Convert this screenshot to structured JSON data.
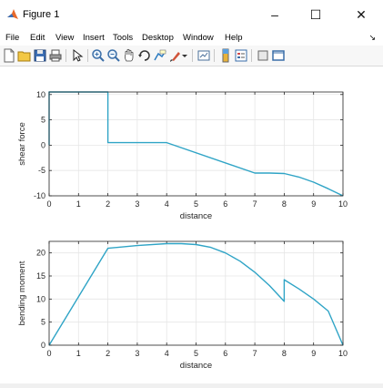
{
  "window": {
    "title": "Figure 1",
    "minimize_glyph": "–",
    "maximize_glyph": "☐",
    "close_glyph": "✕"
  },
  "menu": {
    "items": [
      "File",
      "Edit",
      "View",
      "Insert",
      "Tools",
      "Desktop",
      "Window",
      "Help"
    ],
    "overflow_glyph": "↘"
  },
  "toolbar": {
    "icons": [
      "new-figure-icon",
      "open-file-icon",
      "save-icon",
      "print-icon",
      "select-arrow-icon",
      "zoom-in-icon",
      "zoom-out-icon",
      "pan-icon",
      "rotate-3d-icon",
      "data-cursor-icon",
      "brush-icon",
      "brush-dropdown-icon",
      "link-plot-icon",
      "colorbar-icon",
      "legend-icon",
      "hide-plot-tools-icon",
      "show-plot-tools-icon"
    ]
  },
  "colors": {
    "line": "#2fa4c6",
    "grid": "#e6e6e6",
    "axis": "#262626"
  },
  "chart_data": [
    {
      "type": "line",
      "title": "",
      "xlabel": "distance",
      "ylabel": "shear force",
      "xlim": [
        0,
        10
      ],
      "ylim": [
        -10,
        10.5
      ],
      "xticks": [
        0,
        1,
        2,
        3,
        4,
        5,
        6,
        7,
        8,
        9,
        10
      ],
      "yticks": [
        -10,
        -5,
        0,
        5,
        10
      ],
      "grid": true,
      "x": [
        0,
        0,
        2,
        2,
        4,
        7,
        7.5,
        8,
        8.5,
        9,
        9.5,
        10
      ],
      "y": [
        0,
        10.5,
        10.5,
        0.5,
        0.5,
        -5.5,
        -5.5,
        -5.6,
        -6.3,
        -7.3,
        -8.6,
        -10
      ]
    },
    {
      "type": "line",
      "title": "",
      "xlabel": "distance",
      "ylabel": "bending moment",
      "xlim": [
        0,
        10
      ],
      "ylim": [
        0,
        22.5
      ],
      "xticks": [
        0,
        1,
        2,
        3,
        4,
        5,
        6,
        7,
        8,
        9,
        10
      ],
      "yticks": [
        0,
        5,
        10,
        15,
        20
      ],
      "grid": true,
      "x": [
        0,
        2,
        3,
        4,
        4.5,
        5,
        5.5,
        6,
        6.5,
        7,
        7.5,
        8,
        8,
        8.5,
        9,
        9.5,
        10
      ],
      "y": [
        0,
        21,
        21.6,
        22,
        22,
        21.8,
        21.2,
        20,
        18.2,
        15.8,
        12.9,
        9.5,
        14.2,
        12.2,
        10,
        7.4,
        0
      ]
    }
  ]
}
